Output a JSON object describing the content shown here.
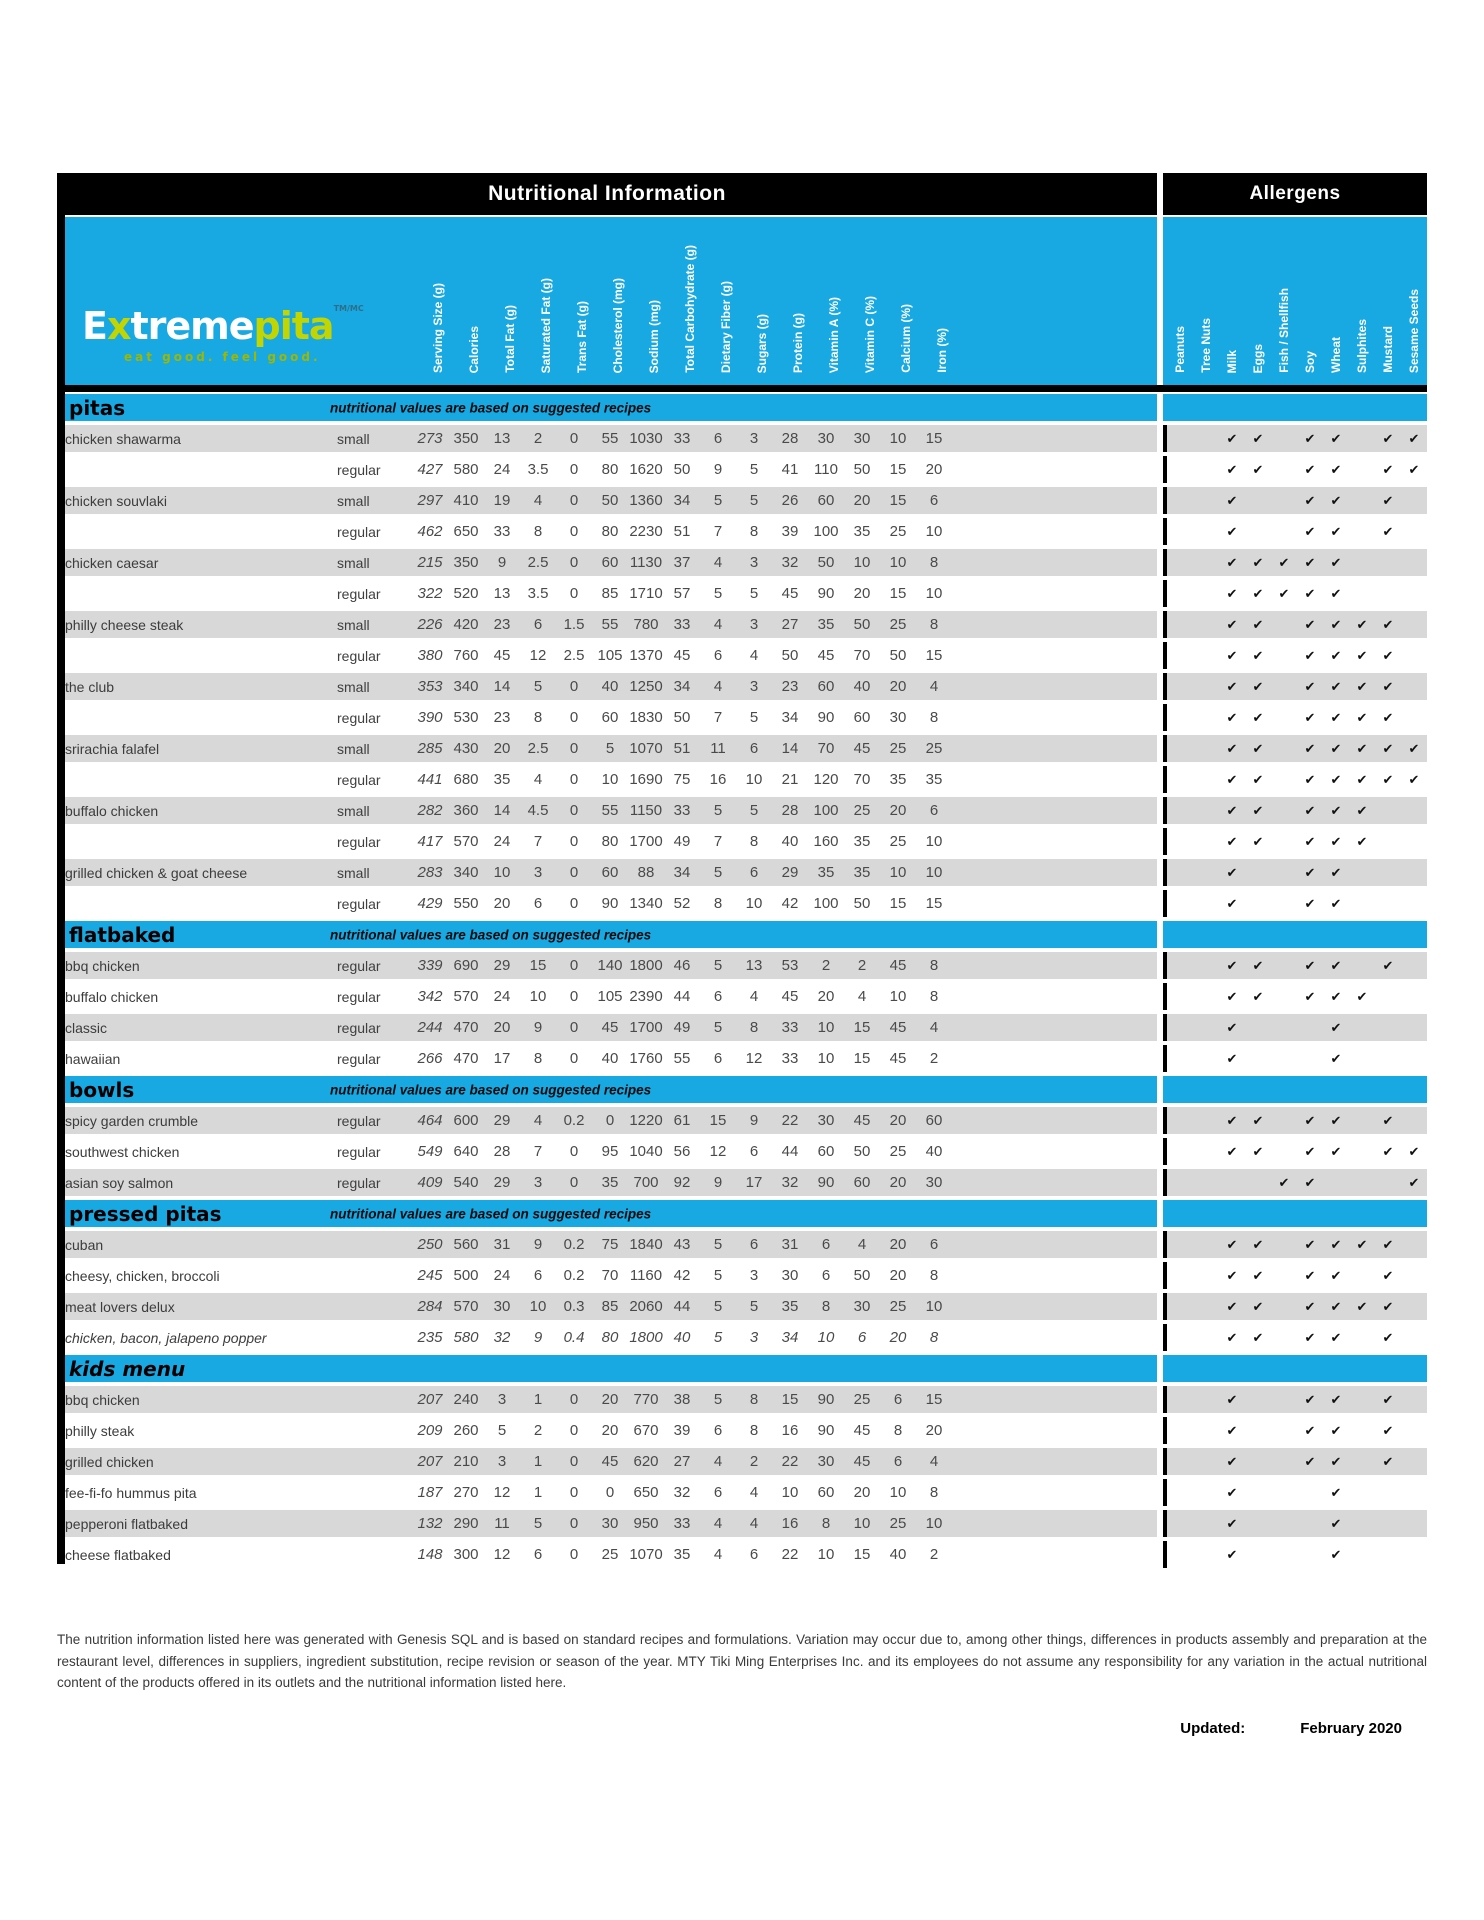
{
  "header": {
    "nutrition_title": "Nutritional Information",
    "allergens_title": "Allergens"
  },
  "logo": {
    "brand_prefix": "E",
    "brand_x": "x",
    "brand_rest": "treme",
    "brand_accent": "pita",
    "trademark": "TM/MC",
    "tagline": "eat good. feel good."
  },
  "colors": {
    "cyan": "#18A9E2",
    "lime": "#C3D500",
    "tagline_green": "#9FB700",
    "row_gray": "#D8D8D8",
    "bar_black": "#000000"
  },
  "symbols": {
    "check": "✔"
  },
  "columns": {
    "nutrition": [
      "Serving Size (g)",
      "Calories",
      "Total Fat (g)",
      "Saturated Fat (g)",
      "Trans Fat (g)",
      "Cholesterol (mg)",
      "Sodium (mg)",
      "Total Carbohydrate (g)",
      "Dietary Fiber (g)",
      "Sugars (g)",
      "Protein (g)",
      "Vitamin A (%)",
      "Vitamin C (%)",
      "Calcium (%)",
      "Iron (%)"
    ],
    "allergens": [
      "Peanuts",
      "Tree Nuts",
      "Milk",
      "Eggs",
      "Fish / Shellfish",
      "Soy",
      "Wheat",
      "Sulphites",
      "Mustard",
      "Sesame Seeds"
    ]
  },
  "sections": [
    {
      "title": "pitas",
      "note": "nutritional values are based on suggested recipes",
      "rows": [
        {
          "name": "chicken shawarma",
          "size": "small",
          "values": [
            "273",
            "350",
            "13",
            "2",
            "0",
            "55",
            "1030",
            "33",
            "6",
            "3",
            "28",
            "30",
            "30",
            "10",
            "15"
          ],
          "allergens": [
            "Milk",
            "Eggs",
            "Soy",
            "Wheat",
            "Mustard",
            "Sesame Seeds"
          ]
        },
        {
          "name": "",
          "size": "regular",
          "values": [
            "427",
            "580",
            "24",
            "3.5",
            "0",
            "80",
            "1620",
            "50",
            "9",
            "5",
            "41",
            "110",
            "50",
            "15",
            "20"
          ],
          "allergens": [
            "Milk",
            "Eggs",
            "Soy",
            "Wheat",
            "Mustard",
            "Sesame Seeds"
          ]
        },
        {
          "name": "chicken souvlaki",
          "size": "small",
          "values": [
            "297",
            "410",
            "19",
            "4",
            "0",
            "50",
            "1360",
            "34",
            "5",
            "5",
            "26",
            "60",
            "20",
            "15",
            "6"
          ],
          "allergens": [
            "Milk",
            "Soy",
            "Wheat",
            "Mustard"
          ]
        },
        {
          "name": "",
          "size": "regular",
          "values": [
            "462",
            "650",
            "33",
            "8",
            "0",
            "80",
            "2230",
            "51",
            "7",
            "8",
            "39",
            "100",
            "35",
            "25",
            "10"
          ],
          "allergens": [
            "Milk",
            "Soy",
            "Wheat",
            "Mustard"
          ]
        },
        {
          "name": "chicken caesar",
          "size": "small",
          "values": [
            "215",
            "350",
            "9",
            "2.5",
            "0",
            "60",
            "1130",
            "37",
            "4",
            "3",
            "32",
            "50",
            "10",
            "10",
            "8"
          ],
          "allergens": [
            "Milk",
            "Eggs",
            "Fish / Shellfish",
            "Soy",
            "Wheat"
          ]
        },
        {
          "name": "",
          "size": "regular",
          "values": [
            "322",
            "520",
            "13",
            "3.5",
            "0",
            "85",
            "1710",
            "57",
            "5",
            "5",
            "45",
            "90",
            "20",
            "15",
            "10"
          ],
          "allergens": [
            "Milk",
            "Eggs",
            "Fish / Shellfish",
            "Soy",
            "Wheat"
          ]
        },
        {
          "name": "philly cheese steak",
          "size": "small",
          "values": [
            "226",
            "420",
            "23",
            "6",
            "1.5",
            "55",
            "780",
            "33",
            "4",
            "3",
            "27",
            "35",
            "50",
            "25",
            "8"
          ],
          "allergens": [
            "Milk",
            "Eggs",
            "Soy",
            "Wheat",
            "Sulphites",
            "Mustard"
          ]
        },
        {
          "name": "",
          "size": "regular",
          "values": [
            "380",
            "760",
            "45",
            "12",
            "2.5",
            "105",
            "1370",
            "45",
            "6",
            "4",
            "50",
            "45",
            "70",
            "50",
            "15"
          ],
          "allergens": [
            "Milk",
            "Eggs",
            "Soy",
            "Wheat",
            "Sulphites",
            "Mustard"
          ]
        },
        {
          "name": "the club",
          "size": "small",
          "values": [
            "353",
            "340",
            "14",
            "5",
            "0",
            "40",
            "1250",
            "34",
            "4",
            "3",
            "23",
            "60",
            "40",
            "20",
            "4"
          ],
          "allergens": [
            "Milk",
            "Eggs",
            "Soy",
            "Wheat",
            "Sulphites",
            "Mustard"
          ]
        },
        {
          "name": "",
          "size": "regular",
          "values": [
            "390",
            "530",
            "23",
            "8",
            "0",
            "60",
            "1830",
            "50",
            "7",
            "5",
            "34",
            "90",
            "60",
            "30",
            "8"
          ],
          "allergens": [
            "Milk",
            "Eggs",
            "Soy",
            "Wheat",
            "Sulphites",
            "Mustard"
          ]
        },
        {
          "name": "srirachia falafel",
          "size": "small",
          "values": [
            "285",
            "430",
            "20",
            "2.5",
            "0",
            "5",
            "1070",
            "51",
            "11",
            "6",
            "14",
            "70",
            "45",
            "25",
            "25"
          ],
          "allergens": [
            "Milk",
            "Eggs",
            "Soy",
            "Wheat",
            "Sulphites",
            "Mustard",
            "Sesame Seeds"
          ]
        },
        {
          "name": "",
          "size": "regular",
          "values": [
            "441",
            "680",
            "35",
            "4",
            "0",
            "10",
            "1690",
            "75",
            "16",
            "10",
            "21",
            "120",
            "70",
            "35",
            "35"
          ],
          "allergens": [
            "Milk",
            "Eggs",
            "Soy",
            "Wheat",
            "Sulphites",
            "Mustard",
            "Sesame Seeds"
          ]
        },
        {
          "name": "buffalo chicken",
          "size": "small",
          "values": [
            "282",
            "360",
            "14",
            "4.5",
            "0",
            "55",
            "1150",
            "33",
            "5",
            "5",
            "28",
            "100",
            "25",
            "20",
            "6"
          ],
          "allergens": [
            "Milk",
            "Eggs",
            "Soy",
            "Wheat",
            "Sulphites"
          ]
        },
        {
          "name": "",
          "size": "regular",
          "values": [
            "417",
            "570",
            "24",
            "7",
            "0",
            "80",
            "1700",
            "49",
            "7",
            "8",
            "40",
            "160",
            "35",
            "25",
            "10"
          ],
          "allergens": [
            "Milk",
            "Eggs",
            "Soy",
            "Wheat",
            "Sulphites"
          ]
        },
        {
          "name": "grilled chicken & goat cheese",
          "size": "small",
          "values": [
            "283",
            "340",
            "10",
            "3",
            "0",
            "60",
            "88",
            "34",
            "5",
            "6",
            "29",
            "35",
            "35",
            "10",
            "10"
          ],
          "allergens": [
            "Milk",
            "Soy",
            "Wheat"
          ]
        },
        {
          "name": "",
          "size": "regular",
          "values": [
            "429",
            "550",
            "20",
            "6",
            "0",
            "90",
            "1340",
            "52",
            "8",
            "10",
            "42",
            "100",
            "50",
            "15",
            "15"
          ],
          "allergens": [
            "Milk",
            "Soy",
            "Wheat"
          ]
        }
      ]
    },
    {
      "title": "flatbaked",
      "note": "nutritional values are based on suggested recipes",
      "rows": [
        {
          "name": "bbq chicken",
          "size": "regular",
          "values": [
            "339",
            "690",
            "29",
            "15",
            "0",
            "140",
            "1800",
            "46",
            "5",
            "13",
            "53",
            "2",
            "2",
            "45",
            "8"
          ],
          "allergens": [
            "Milk",
            "Eggs",
            "Soy",
            "Wheat",
            "Mustard"
          ]
        },
        {
          "name": "buffalo chicken",
          "size": "regular",
          "values": [
            "342",
            "570",
            "24",
            "10",
            "0",
            "105",
            "2390",
            "44",
            "6",
            "4",
            "45",
            "20",
            "4",
            "10",
            "8"
          ],
          "allergens": [
            "Milk",
            "Eggs",
            "Soy",
            "Wheat",
            "Sulphites"
          ]
        },
        {
          "name": "classic",
          "size": "regular",
          "values": [
            "244",
            "470",
            "20",
            "9",
            "0",
            "45",
            "1700",
            "49",
            "5",
            "8",
            "33",
            "10",
            "15",
            "45",
            "4"
          ],
          "allergens": [
            "Milk",
            "Wheat"
          ]
        },
        {
          "name": "hawaiian",
          "size": "regular",
          "values": [
            "266",
            "470",
            "17",
            "8",
            "0",
            "40",
            "1760",
            "55",
            "6",
            "12",
            "33",
            "10",
            "15",
            "45",
            "2"
          ],
          "allergens": [
            "Milk",
            "Wheat"
          ]
        }
      ]
    },
    {
      "title": "bowls",
      "note": "nutritional values are based on suggested recipes",
      "rows": [
        {
          "name": "spicy garden crumble",
          "size": "regular",
          "values": [
            "464",
            "600",
            "29",
            "4",
            "0.2",
            "0",
            "1220",
            "61",
            "15",
            "9",
            "22",
            "30",
            "45",
            "20",
            "60"
          ],
          "allergens": [
            "Milk",
            "Eggs",
            "Soy",
            "Wheat",
            "Mustard"
          ]
        },
        {
          "name": "southwest chicken",
          "size": "regular",
          "values": [
            "549",
            "640",
            "28",
            "7",
            "0",
            "95",
            "1040",
            "56",
            "12",
            "6",
            "44",
            "60",
            "50",
            "25",
            "40"
          ],
          "allergens": [
            "Milk",
            "Eggs",
            "Soy",
            "Wheat",
            "Mustard",
            "Sesame Seeds"
          ]
        },
        {
          "name": "asian soy salmon",
          "size": "regular",
          "values": [
            "409",
            "540",
            "29",
            "3",
            "0",
            "35",
            "700",
            "92",
            "9",
            "17",
            "32",
            "90",
            "60",
            "20",
            "30"
          ],
          "allergens": [
            "Fish / Shellfish",
            "Soy",
            "Sesame Seeds"
          ]
        }
      ]
    },
    {
      "title": "pressed pitas",
      "note": "nutritional values are based on suggested recipes",
      "rows": [
        {
          "name": "cuban",
          "size": "",
          "values": [
            "250",
            "560",
            "31",
            "9",
            "0.2",
            "75",
            "1840",
            "43",
            "5",
            "6",
            "31",
            "6",
            "4",
            "20",
            "6"
          ],
          "allergens": [
            "Milk",
            "Eggs",
            "Soy",
            "Wheat",
            "Sulphites",
            "Mustard"
          ]
        },
        {
          "name": "cheesy, chicken, broccoli",
          "size": "",
          "values": [
            "245",
            "500",
            "24",
            "6",
            "0.2",
            "70",
            "1160",
            "42",
            "5",
            "3",
            "30",
            "6",
            "50",
            "20",
            "8"
          ],
          "allergens": [
            "Milk",
            "Eggs",
            "Soy",
            "Wheat",
            "Mustard"
          ]
        },
        {
          "name": "meat lovers delux",
          "size": "",
          "values": [
            "284",
            "570",
            "30",
            "10",
            "0.3",
            "85",
            "2060",
            "44",
            "5",
            "5",
            "35",
            "8",
            "30",
            "25",
            "10"
          ],
          "allergens": [
            "Milk",
            "Eggs",
            "Soy",
            "Wheat",
            "Sulphites",
            "Mustard"
          ]
        },
        {
          "name": "chicken, bacon, jalapeno popper",
          "size": "",
          "italic": true,
          "values": [
            "235",
            "580",
            "32",
            "9",
            "0.4",
            "80",
            "1800",
            "40",
            "5",
            "3",
            "34",
            "10",
            "6",
            "20",
            "8"
          ],
          "allergens": [
            "Milk",
            "Eggs",
            "Soy",
            "Wheat",
            "Mustard"
          ]
        }
      ]
    },
    {
      "title": "kids menu",
      "note": "",
      "italic": true,
      "rows": [
        {
          "name": "bbq chicken",
          "size": "",
          "values": [
            "207",
            "240",
            "3",
            "1",
            "0",
            "20",
            "770",
            "38",
            "5",
            "8",
            "15",
            "90",
            "25",
            "6",
            "15"
          ],
          "allergens": [
            "Milk",
            "Soy",
            "Wheat",
            "Mustard"
          ]
        },
        {
          "name": "philly steak",
          "size": "",
          "values": [
            "209",
            "260",
            "5",
            "2",
            "0",
            "20",
            "670",
            "39",
            "6",
            "8",
            "16",
            "90",
            "45",
            "8",
            "20"
          ],
          "allergens": [
            "Milk",
            "Soy",
            "Wheat",
            "Mustard"
          ]
        },
        {
          "name": "grilled chicken",
          "size": "",
          "values": [
            "207",
            "210",
            "3",
            "1",
            "0",
            "45",
            "620",
            "27",
            "4",
            "2",
            "22",
            "30",
            "45",
            "6",
            "4"
          ],
          "allergens": [
            "Milk",
            "Soy",
            "Wheat",
            "Mustard"
          ]
        },
        {
          "name": "fee-fi-fo hummus pita",
          "size": "",
          "values": [
            "187",
            "270",
            "12",
            "1",
            "0",
            "0",
            "650",
            "32",
            "6",
            "4",
            "10",
            "60",
            "20",
            "10",
            "8"
          ],
          "allergens": [
            "Milk",
            "Wheat"
          ]
        },
        {
          "name": "pepperoni flatbaked",
          "size": "",
          "values": [
            "132",
            "290",
            "11",
            "5",
            "0",
            "30",
            "950",
            "33",
            "4",
            "4",
            "16",
            "8",
            "10",
            "25",
            "10"
          ],
          "allergens": [
            "Milk",
            "Wheat"
          ]
        },
        {
          "name": "cheese flatbaked",
          "size": "",
          "values": [
            "148",
            "300",
            "12",
            "6",
            "0",
            "25",
            "1070",
            "35",
            "4",
            "6",
            "22",
            "10",
            "15",
            "40",
            "2"
          ],
          "allergens": [
            "Milk",
            "Wheat"
          ]
        }
      ]
    }
  ],
  "footer": {
    "disclaimer": "The nutrition information listed here was generated with Genesis SQL and is based on standard recipes and formulations. Variation may occur due to, among other things, differences in products assembly and preparation at the restaurant level, differences in suppliers, ingredient substitution, recipe revision or season of the year. MTY Tiki Ming Enterprises Inc. and its employees do not assume any responsibility for any variation in the actual nutritional content of the products offered in its outlets and the nutritional information listed here.",
    "updated_label": "Updated:",
    "updated_value": "February 2020"
  }
}
